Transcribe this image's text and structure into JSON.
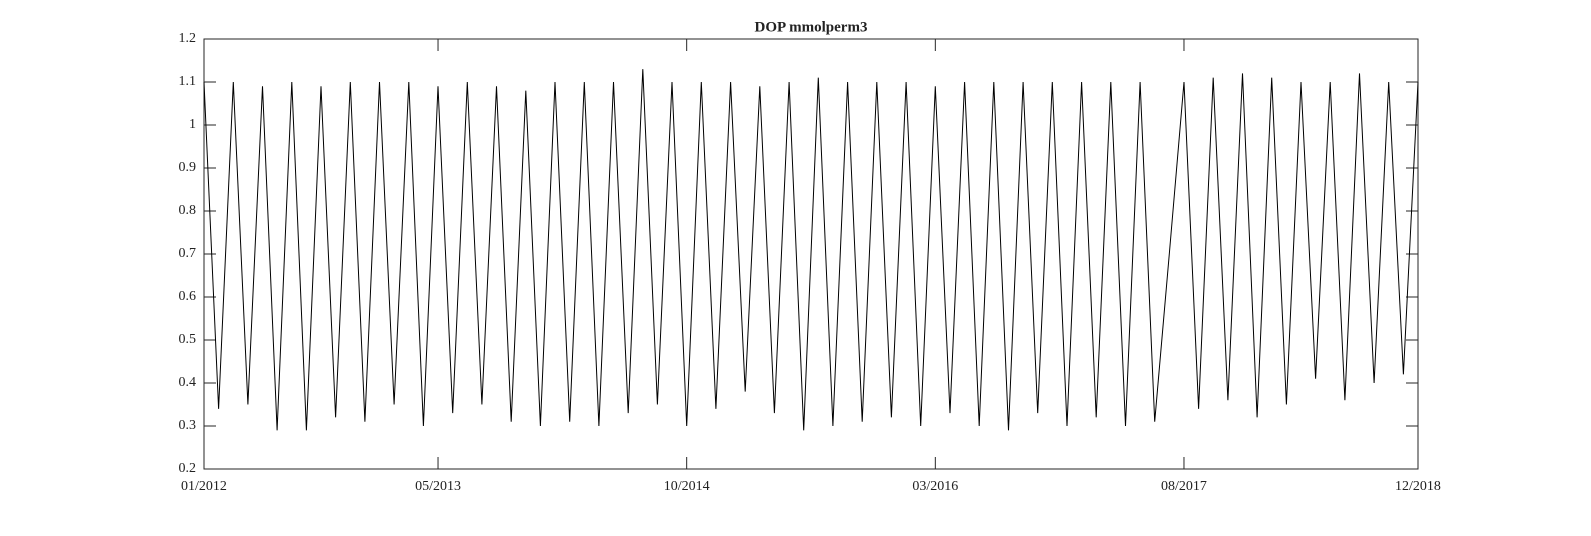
{
  "chart_data": {
    "type": "line",
    "title": "DOP mmolperm3",
    "x": [
      "2012-01",
      "2012-02",
      "2012-03",
      "2012-04",
      "2012-05",
      "2012-06",
      "2012-07",
      "2012-08",
      "2012-09",
      "2012-10",
      "2012-11",
      "2012-12",
      "2013-01",
      "2013-02",
      "2013-03",
      "2013-04",
      "2013-05",
      "2013-06",
      "2013-07",
      "2013-08",
      "2013-09",
      "2013-10",
      "2013-11",
      "2013-12",
      "2014-01",
      "2014-02",
      "2014-03",
      "2014-04",
      "2014-05",
      "2014-06",
      "2014-07",
      "2014-08",
      "2014-09",
      "2014-10",
      "2014-11",
      "2014-12",
      "2015-01",
      "2015-02",
      "2015-03",
      "2015-04",
      "2015-05",
      "2015-06",
      "2015-07",
      "2015-08",
      "2015-09",
      "2015-10",
      "2015-11",
      "2015-12",
      "2016-01",
      "2016-02",
      "2016-03",
      "2016-04",
      "2016-05",
      "2016-06",
      "2016-07",
      "2016-08",
      "2016-09",
      "2016-10",
      "2016-11",
      "2016-12",
      "2017-01",
      "2017-02",
      "2017-03",
      "2017-04",
      "2017-05",
      "2017-06",
      "2017-07",
      "2017-08",
      "2017-09",
      "2017-10",
      "2017-11",
      "2017-12",
      "2018-01",
      "2018-02",
      "2018-03",
      "2018-04",
      "2018-05",
      "2018-06",
      "2018-07",
      "2018-08",
      "2018-09",
      "2018-10",
      "2018-11",
      "2018-12"
    ],
    "values": [
      1.1,
      0.34,
      1.1,
      0.35,
      1.09,
      0.29,
      1.1,
      0.29,
      1.09,
      0.32,
      1.1,
      0.31,
      1.1,
      0.35,
      1.1,
      0.3,
      1.09,
      0.33,
      1.1,
      0.35,
      1.09,
      0.31,
      1.08,
      0.3,
      1.1,
      0.31,
      1.1,
      0.3,
      1.1,
      0.33,
      1.13,
      0.35,
      1.1,
      0.3,
      1.1,
      0.34,
      1.1,
      0.38,
      1.09,
      0.33,
      1.1,
      0.29,
      1.11,
      0.3,
      1.1,
      0.31,
      1.1,
      0.32,
      1.1,
      0.3,
      1.09,
      0.33,
      1.1,
      0.3,
      1.1,
      0.29,
      1.1,
      0.33,
      1.1,
      0.3,
      1.1,
      0.32,
      1.1,
      0.3,
      1.1,
      0.31,
      0.7,
      1.1,
      0.34,
      1.11,
      0.36,
      1.12,
      0.32,
      1.11,
      0.35,
      1.1,
      0.41,
      1.1,
      0.36,
      1.12,
      0.4,
      1.1,
      0.42,
      1.1
    ],
    "color": "#000000",
    "xlim": [
      "2012-01",
      "2018-12"
    ],
    "xticks": [
      {
        "value": "2012-01",
        "label": "01/2012"
      },
      {
        "value": "2013-05",
        "label": "05/2013"
      },
      {
        "value": "2014-10",
        "label": "10/2014"
      },
      {
        "value": "2016-03",
        "label": "03/2016"
      },
      {
        "value": "2017-08",
        "label": "08/2017"
      },
      {
        "value": "2018-12",
        "label": "12/2018"
      }
    ],
    "ylim": [
      0.2,
      1.2
    ],
    "yticks": [
      0.2,
      0.3,
      0.4,
      0.5,
      0.6,
      0.7,
      0.8,
      0.9,
      1,
      1.1,
      1.2
    ]
  }
}
